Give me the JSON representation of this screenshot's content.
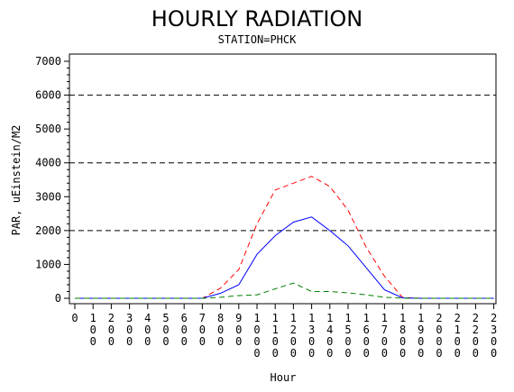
{
  "chart_data": {
    "type": "line",
    "title": "HOURLY RADIATION",
    "subtitle": "STATION=PHCK",
    "ylabel": "PAR, uEinstein/M2",
    "xlabel": "Hour",
    "ylim": [
      0,
      7000
    ],
    "yticks": [
      0,
      1000,
      2000,
      3000,
      4000,
      5000,
      6000,
      7000
    ],
    "reference_lines": [
      2000,
      4000,
      6000
    ],
    "x": [
      "0",
      "100",
      "200",
      "300",
      "400",
      "500",
      "600",
      "700",
      "800",
      "900",
      "1000",
      "1100",
      "1200",
      "1300",
      "1400",
      "1500",
      "1600",
      "1700",
      "1800",
      "1900",
      "2000",
      "2100",
      "2200",
      "2300"
    ],
    "series": [
      {
        "color": "#ff0000",
        "dash": "dashed",
        "values": [
          0,
          0,
          0,
          0,
          0,
          0,
          0,
          0,
          300,
          850,
          2200,
          3200,
          3400,
          3600,
          3300,
          2600,
          1500,
          650,
          20,
          0,
          0,
          0,
          0,
          0
        ]
      },
      {
        "color": "#0000ff",
        "dash": "solid",
        "values": [
          0,
          0,
          0,
          0,
          0,
          0,
          0,
          0,
          150,
          400,
          1300,
          1850,
          2250,
          2400,
          2000,
          1550,
          900,
          250,
          10,
          0,
          0,
          0,
          0,
          0
        ]
      },
      {
        "color": "#008000",
        "dash": "dashed",
        "values": [
          0,
          0,
          0,
          0,
          0,
          0,
          0,
          0,
          30,
          80,
          100,
          280,
          450,
          200,
          200,
          160,
          100,
          30,
          5,
          0,
          0,
          0,
          0,
          0
        ]
      }
    ],
    "grid": false
  }
}
